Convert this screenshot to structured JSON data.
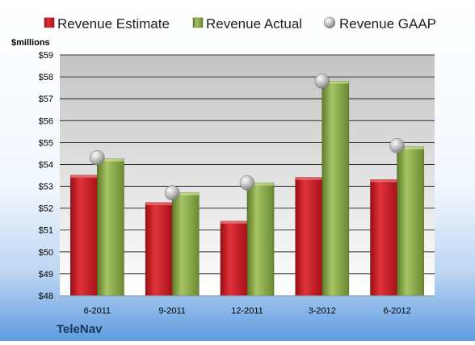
{
  "chart_data": {
    "type": "bar",
    "unit_label": "$millions",
    "company": "TeleNav",
    "categories": [
      "6-2011",
      "9-2011",
      "12-2011",
      "3-2012",
      "6-2012"
    ],
    "series": [
      {
        "name": "Revenue Estimate",
        "kind": "bar",
        "values": [
          53.5,
          52.25,
          51.4,
          53.4,
          53.3
        ],
        "color": "#c8141c"
      },
      {
        "name": "Revenue Actual",
        "kind": "bar",
        "values": [
          54.25,
          52.7,
          53.15,
          57.8,
          54.8
        ],
        "color": "#86a546"
      },
      {
        "name": "Revenue GAAP",
        "kind": "marker",
        "values": [
          54.3,
          52.7,
          53.15,
          57.8,
          54.85
        ],
        "color": "#a6a6a6"
      }
    ],
    "ylim": [
      48,
      59
    ],
    "yticks": [
      "$48",
      "$49",
      "$50",
      "$51",
      "$52",
      "$53",
      "$54",
      "$55",
      "$56",
      "$57",
      "$58",
      "$59"
    ],
    "legend_position": "top",
    "grid": true
  }
}
